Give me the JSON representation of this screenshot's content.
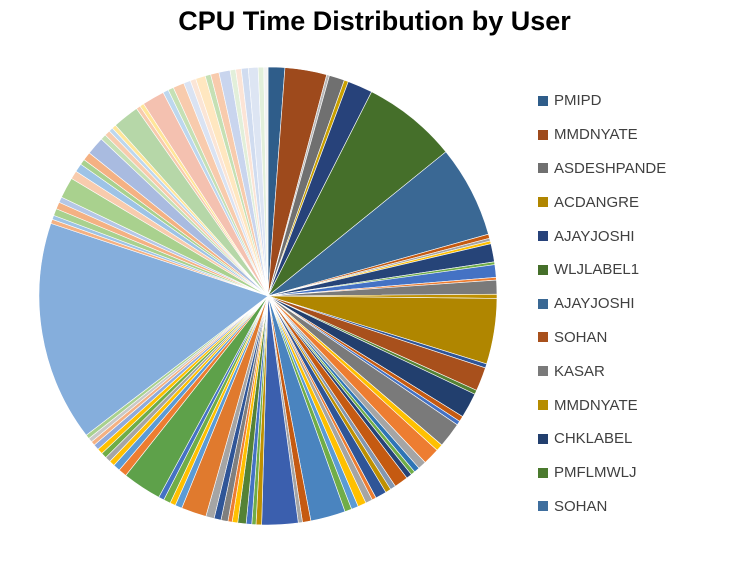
{
  "chart_data": {
    "type": "pie",
    "title": "CPU Time Distribution by User",
    "legend_position": "right",
    "legend": [
      {
        "label": "PMIPD",
        "color": "#2F5D8A"
      },
      {
        "label": "MMDNYATE",
        "color": "#9E4A1C"
      },
      {
        "label": "ASDESHPANDE",
        "color": "#707070"
      },
      {
        "label": "ACDANGRE",
        "color": "#B08600"
      },
      {
        "label": "AJAYJOSHI",
        "color": "#27427A"
      },
      {
        "label": "WLJLABEL1",
        "color": "#456F2A"
      },
      {
        "label": "AJAYJOSHI",
        "color": "#3A6894"
      },
      {
        "label": "SOHAN",
        "color": "#A8501C"
      },
      {
        "label": "KASAR",
        "color": "#7A7A7A"
      },
      {
        "label": "MMDNYATE",
        "color": "#B58C00"
      },
      {
        "label": "CHKLABEL",
        "color": "#223F6E"
      },
      {
        "label": "PMFLMWLJ",
        "color": "#4B7A2E"
      },
      {
        "label": "SOHAN",
        "color": "#3E6E9E"
      }
    ],
    "slices": [
      {
        "value": 1.2,
        "color": "#2F5D8A"
      },
      {
        "value": 3.0,
        "color": "#9E4A1C"
      },
      {
        "value": 0.2,
        "color": "#B8B8B8"
      },
      {
        "value": 1.1,
        "color": "#707070"
      },
      {
        "value": 0.3,
        "color": "#C9A000"
      },
      {
        "value": 1.8,
        "color": "#27427A"
      },
      {
        "value": 6.8,
        "color": "#456F2A"
      },
      {
        "value": 6.6,
        "color": "#3A6894"
      },
      {
        "value": 0.3,
        "color": "#C55A11"
      },
      {
        "value": 0.2,
        "color": "#A5A5A5"
      },
      {
        "value": 0.2,
        "color": "#FFC000"
      },
      {
        "value": 1.3,
        "color": "#264478"
      },
      {
        "value": 0.2,
        "color": "#70AD47"
      },
      {
        "value": 0.9,
        "color": "#4472C4"
      },
      {
        "value": 0.2,
        "color": "#ED7D31"
      },
      {
        "value": 1.0,
        "color": "#7A7A7A"
      },
      {
        "value": 0.3,
        "color": "#BF9000"
      },
      {
        "value": 4.7,
        "color": "#B08600"
      },
      {
        "value": 0.3,
        "color": "#2F5597"
      },
      {
        "value": 1.7,
        "color": "#A8501C"
      },
      {
        "value": 0.3,
        "color": "#548235"
      },
      {
        "value": 1.8,
        "color": "#223F6E"
      },
      {
        "value": 0.4,
        "color": "#C55A11"
      },
      {
        "value": 0.3,
        "color": "#4472C4"
      },
      {
        "value": 1.8,
        "color": "#7A7A7A"
      },
      {
        "value": 0.5,
        "color": "#FFC000"
      },
      {
        "value": 1.2,
        "color": "#ED7D31"
      },
      {
        "value": 0.6,
        "color": "#A5A5A5"
      },
      {
        "value": 0.4,
        "color": "#2E75B6"
      },
      {
        "value": 0.3,
        "color": "#70AD47"
      },
      {
        "value": 0.4,
        "color": "#264478"
      },
      {
        "value": 1.0,
        "color": "#C55A11"
      },
      {
        "value": 0.4,
        "color": "#8497B0"
      },
      {
        "value": 0.4,
        "color": "#BF9000"
      },
      {
        "value": 0.8,
        "color": "#2F5597"
      },
      {
        "value": 0.3,
        "color": "#ED7D31"
      },
      {
        "value": 0.5,
        "color": "#A5A5A5"
      },
      {
        "value": 0.6,
        "color": "#FFC000"
      },
      {
        "value": 0.5,
        "color": "#5B9BD5"
      },
      {
        "value": 0.5,
        "color": "#70AD47"
      },
      {
        "value": 2.5,
        "color": "#4A84BF"
      },
      {
        "value": 0.6,
        "color": "#C55A11"
      },
      {
        "value": 0.3,
        "color": "#A5A5A5"
      },
      {
        "value": 2.6,
        "color": "#3B5FAE"
      },
      {
        "value": 0.4,
        "color": "#BF9000"
      },
      {
        "value": 0.3,
        "color": "#70AD47"
      },
      {
        "value": 0.4,
        "color": "#4472C4"
      },
      {
        "value": 0.6,
        "color": "#548235"
      },
      {
        "value": 0.4,
        "color": "#FFC000"
      },
      {
        "value": 0.3,
        "color": "#ED7D31"
      },
      {
        "value": 0.5,
        "color": "#7F7F7F"
      },
      {
        "value": 0.5,
        "color": "#2F5597"
      },
      {
        "value": 0.6,
        "color": "#A5A5A5"
      },
      {
        "value": 1.8,
        "color": "#E07A2E"
      },
      {
        "value": 0.5,
        "color": "#5B9BD5"
      },
      {
        "value": 0.4,
        "color": "#FFC000"
      },
      {
        "value": 0.5,
        "color": "#70AD47"
      },
      {
        "value": 0.4,
        "color": "#4472C4"
      },
      {
        "value": 2.8,
        "color": "#5EA14A"
      },
      {
        "value": 0.6,
        "color": "#ED7D31"
      },
      {
        "value": 0.5,
        "color": "#5B9BD5"
      },
      {
        "value": 0.4,
        "color": "#FFC000"
      },
      {
        "value": 0.4,
        "color": "#A5A5A5"
      },
      {
        "value": 0.4,
        "color": "#70AD47"
      },
      {
        "value": 0.4,
        "color": "#FFC000"
      },
      {
        "value": 0.4,
        "color": "#8FAADC"
      },
      {
        "value": 0.3,
        "color": "#F4B183"
      },
      {
        "value": 0.3,
        "color": "#C9C9C9"
      },
      {
        "value": 0.3,
        "color": "#A9D18E"
      },
      {
        "value": 15.8,
        "color": "#85AEDC"
      },
      {
        "value": 0.3,
        "color": "#F4B183"
      },
      {
        "value": 0.3,
        "color": "#9DC3E6"
      },
      {
        "value": 0.5,
        "color": "#A9D18E"
      },
      {
        "value": 0.5,
        "color": "#F4B183"
      },
      {
        "value": 0.4,
        "color": "#B4C7E7"
      },
      {
        "value": 1.5,
        "color": "#A9D18E"
      },
      {
        "value": 0.6,
        "color": "#F8CBAD"
      },
      {
        "value": 0.6,
        "color": "#9DC3E6"
      },
      {
        "value": 0.4,
        "color": "#A9D18E"
      },
      {
        "value": 0.6,
        "color": "#F4B183"
      },
      {
        "value": 1.3,
        "color": "#A9BBE0"
      },
      {
        "value": 0.4,
        "color": "#C5E0B4"
      },
      {
        "value": 0.4,
        "color": "#F8CBAD"
      },
      {
        "value": 0.3,
        "color": "#BDD7EE"
      },
      {
        "value": 0.3,
        "color": "#FFE699"
      },
      {
        "value": 1.9,
        "color": "#B6D7A8"
      },
      {
        "value": 0.3,
        "color": "#F8CBAD"
      },
      {
        "value": 0.3,
        "color": "#FFE699"
      },
      {
        "value": 1.6,
        "color": "#F4C1B0"
      },
      {
        "value": 0.4,
        "color": "#BDD7EE"
      },
      {
        "value": 0.4,
        "color": "#C5E0B4"
      },
      {
        "value": 0.8,
        "color": "#F8CBAD"
      },
      {
        "value": 0.5,
        "color": "#DAE3F3"
      },
      {
        "value": 0.4,
        "color": "#FBE5D6"
      },
      {
        "value": 0.7,
        "color": "#FFE7C0"
      },
      {
        "value": 0.4,
        "color": "#C5E0B4"
      },
      {
        "value": 0.6,
        "color": "#F8CBAD"
      },
      {
        "value": 0.8,
        "color": "#C9D5EE"
      },
      {
        "value": 0.4,
        "color": "#E2EFDA"
      },
      {
        "value": 0.4,
        "color": "#FCE4D6"
      },
      {
        "value": 0.5,
        "color": "#D0DCF0"
      },
      {
        "value": 0.7,
        "color": "#DDE5F3"
      },
      {
        "value": 0.4,
        "color": "#E2EFDA"
      },
      {
        "value": 0.3,
        "color": "#F2F2F2"
      }
    ]
  }
}
